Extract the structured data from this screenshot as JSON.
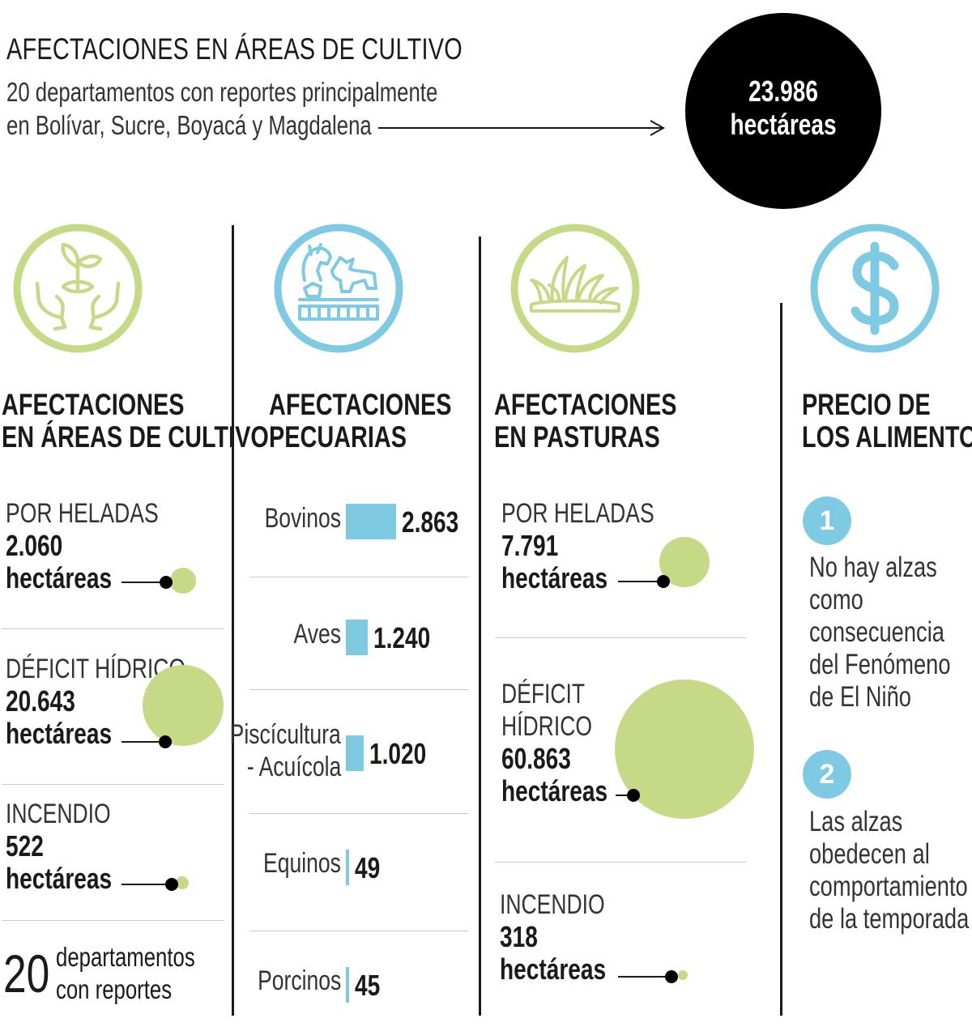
{
  "header": {
    "title": "AFECTACIONES EN ÁREAS DE CULTIVO",
    "subtitle_line1": "20 departamentos con reportes principalmente",
    "subtitle_line2": "en Bolívar, Sucre, Boyacá y Magdalena",
    "total_value": "23.986",
    "total_unit": "hectáreas"
  },
  "columns": {
    "cultivo": {
      "title_line1": "AFECTACIONES",
      "title_line2": "EN ÁREAS DE CULTIVO",
      "icon": "plant-in-hands-icon",
      "items": [
        {
          "label": "POR HELADAS",
          "value": "2.060",
          "unit": "hectáreas"
        },
        {
          "label": "DÉFICIT HÍDRICO",
          "value": "20.643",
          "unit": "hectáreas"
        },
        {
          "label": "INCENDIO",
          "value": "522",
          "unit": "hectáreas"
        }
      ],
      "footer_number": "20",
      "footer_line1": "departamentos",
      "footer_line2": "con reportes"
    },
    "pecuarias": {
      "title_line1": "AFECTACIONES",
      "title_line2": "PECUARIAS",
      "icon": "livestock-icon",
      "items": [
        {
          "label": "Bovinos",
          "value": "2.863"
        },
        {
          "label": "Aves",
          "value": "1.240"
        },
        {
          "label_line1": "Piscícultura",
          "label_line2": "- Acuícola",
          "value": "1.020"
        },
        {
          "label": "Equinos",
          "value": "49"
        },
        {
          "label": "Porcinos",
          "value": "45"
        }
      ]
    },
    "pasturas": {
      "title_line1": "AFECTACIONES",
      "title_line2": "EN PASTURAS",
      "icon": "grass-icon",
      "items": [
        {
          "label": "POR HELADAS",
          "value": "7.791",
          "unit": "hectáreas"
        },
        {
          "label_line1": "DÉFICIT",
          "label_line2": "HÍDRICO",
          "value": "60.863",
          "unit": "hectáreas"
        },
        {
          "label": "INCENDIO",
          "value": "318",
          "unit": "hectáreas"
        }
      ]
    },
    "precio": {
      "title_line1": "PRECIO DE",
      "title_line2": "LOS ALIMENTOS",
      "icon": "dollar-icon",
      "points": [
        {
          "num": "1",
          "lines": [
            "No hay alzas",
            "como",
            "consecuencia",
            "del Fenómeno",
            "de El Niño"
          ]
        },
        {
          "num": "2",
          "lines": [
            "Las alzas",
            "obedecen al",
            "comportamiento",
            "de la temporada"
          ]
        }
      ]
    }
  },
  "chart_data": [
    {
      "type": "bubble",
      "title": "AFECTACIONES EN ÁREAS DE CULTIVO",
      "categories": [
        "POR HELADAS",
        "DÉFICIT HÍDRICO",
        "INCENDIO"
      ],
      "values": [
        2060,
        20643,
        522
      ],
      "unit": "hectáreas"
    },
    {
      "type": "bar",
      "title": "AFECTACIONES PECUARIAS",
      "categories": [
        "Bovinos",
        "Aves",
        "Piscícultura - Acuícola",
        "Equinos",
        "Porcinos"
      ],
      "values": [
        2863,
        1240,
        1020,
        49,
        45
      ]
    },
    {
      "type": "bubble",
      "title": "AFECTACIONES EN PASTURAS",
      "categories": [
        "POR HELADAS",
        "DÉFICIT HÍDRICO",
        "INCENDIO"
      ],
      "values": [
        7791,
        60863,
        318
      ],
      "unit": "hectáreas"
    }
  ],
  "colors": {
    "green": "#c5d987",
    "blue": "#7ecae3",
    "black": "#000000"
  }
}
